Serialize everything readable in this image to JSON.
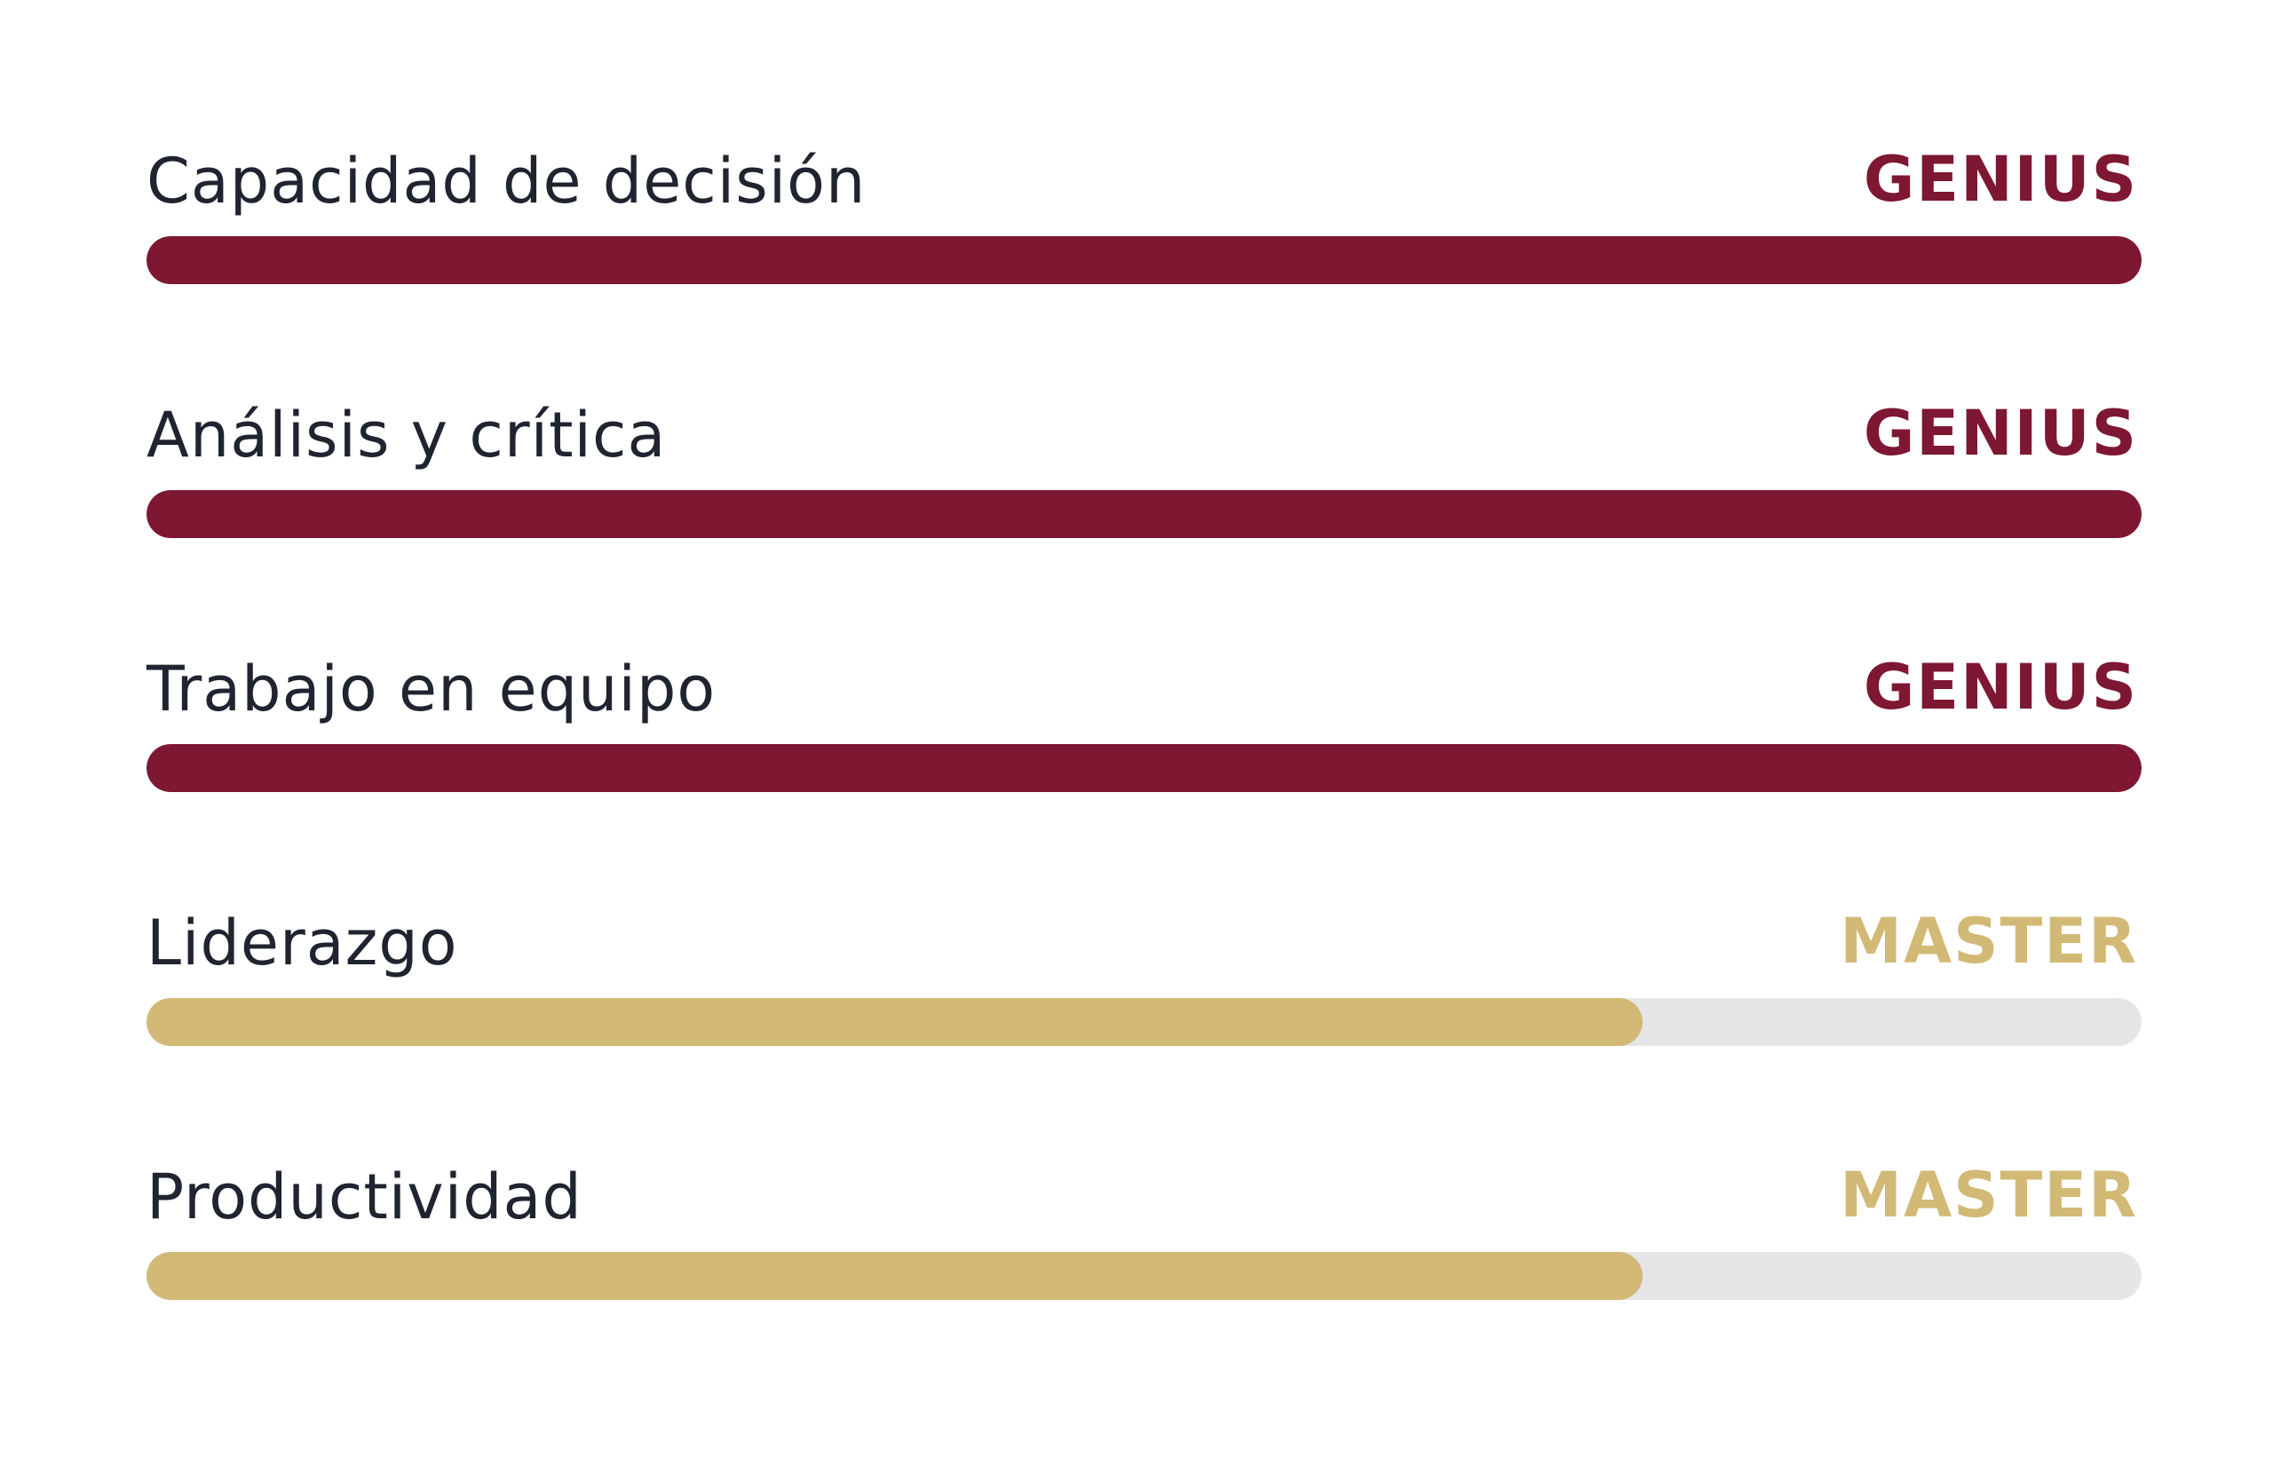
{
  "colors": {
    "genius": "#7d1732",
    "master": "#d2b975",
    "track": "#e6e6e9",
    "label_text": "#1f2430"
  },
  "skills": [
    {
      "label": "Capacidad de decisión",
      "level": "GENIUS",
      "progress": 1.0,
      "level_color": "#7d1732"
    },
    {
      "label": "Análisis y crítica",
      "level": "GENIUS",
      "progress": 1.0,
      "level_color": "#7d1732"
    },
    {
      "label": "Trabajo en equipo",
      "level": "GENIUS",
      "progress": 1.0,
      "level_color": "#7d1732"
    },
    {
      "label": "Liderazgo",
      "level": "MASTER",
      "progress": 0.75,
      "level_color": "#d2b975"
    },
    {
      "label": "Productividad",
      "level": "MASTER",
      "progress": 0.75,
      "level_color": "#d2b975"
    }
  ]
}
